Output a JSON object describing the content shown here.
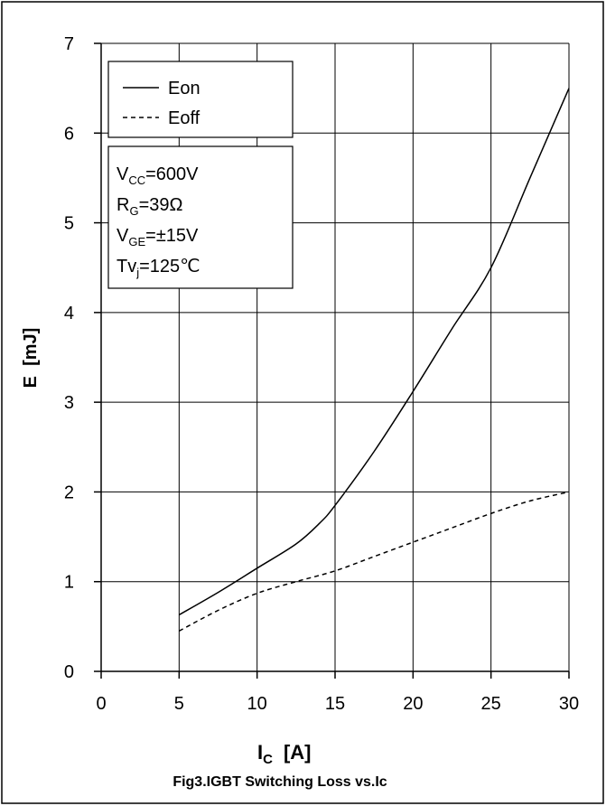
{
  "chart_data": {
    "type": "line",
    "title": "Fig3.IGBT Switching Loss vs.Ic",
    "xlabel": {
      "main": "I",
      "sub": "C",
      "unit": "[A]"
    },
    "ylabel": "E  [mJ]",
    "xlim": [
      0,
      30
    ],
    "ylim": [
      0,
      7
    ],
    "xticks": [
      0,
      5,
      10,
      15,
      20,
      25,
      30
    ],
    "yticks": [
      0,
      1,
      2,
      3,
      4,
      5,
      6,
      7
    ],
    "grid": true,
    "legend_position": "top-left",
    "series": [
      {
        "name": "Eon",
        "style": "solid",
        "x": [
          5,
          7.5,
          10,
          12.5,
          14,
          15,
          17.5,
          20,
          22.5,
          25,
          27.5,
          30
        ],
        "y": [
          0.63,
          0.88,
          1.15,
          1.42,
          1.65,
          1.85,
          2.45,
          3.12,
          3.82,
          4.5,
          5.5,
          6.5
        ]
      },
      {
        "name": "Eoff",
        "style": "dashed",
        "x": [
          5,
          7.5,
          10,
          12.5,
          15,
          17.5,
          20,
          22.5,
          25,
          27.5,
          30
        ],
        "y": [
          0.45,
          0.68,
          0.87,
          1.0,
          1.12,
          1.28,
          1.44,
          1.6,
          1.76,
          1.9,
          2.0
        ]
      }
    ],
    "conditions": [
      {
        "pre": "V",
        "sub": "CC",
        "post": "=600V"
      },
      {
        "pre": "R",
        "sub": "G",
        "post": "=39Ω"
      },
      {
        "pre": "V",
        "sub": "GE",
        "post": "=±15V"
      },
      {
        "pre": "Tv",
        "sub": "j",
        "post": "=125℃"
      }
    ]
  }
}
